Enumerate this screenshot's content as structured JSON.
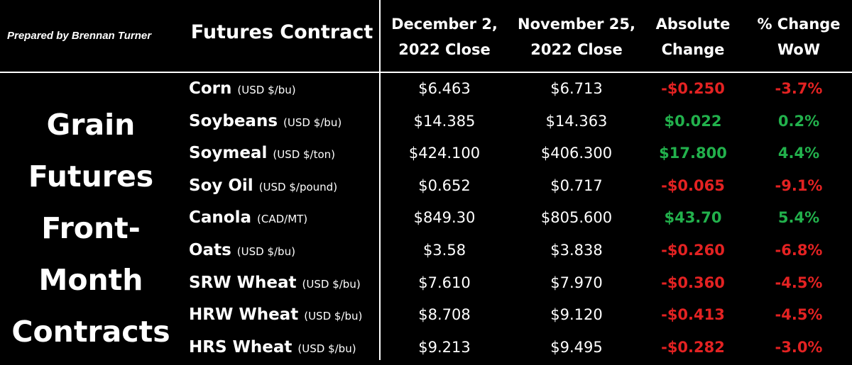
{
  "credit": "Prepared by Brennan Turner",
  "headers": {
    "contract": "Futures Contract",
    "dec_close": [
      "December 2,",
      "2022 Close"
    ],
    "nov_close": [
      "November 25,",
      "2022 Close"
    ],
    "abs_change": [
      "Absolute",
      "Change"
    ],
    "pct_change": [
      "% Change",
      "WoW"
    ]
  },
  "side_title": [
    "Grain",
    "Futures",
    "Front-",
    "Month",
    "Contracts"
  ],
  "colors": {
    "negative": "#e32222",
    "positive": "#22b14c"
  },
  "rows": [
    {
      "name": "Corn",
      "unit": "(USD $/bu)",
      "dec": "$6.463",
      "nov": "$6.713",
      "abs": "-$0.250",
      "pct": "-3.7%",
      "dir": "neg"
    },
    {
      "name": "Soybeans",
      "unit": "(USD $/bu)",
      "dec": "$14.385",
      "nov": "$14.363",
      "abs": "$0.022",
      "pct": "0.2%",
      "dir": "pos"
    },
    {
      "name": "Soymeal",
      "unit": "(USD $/ton)",
      "dec": "$424.100",
      "nov": "$406.300",
      "abs": "$17.800",
      "pct": "4.4%",
      "dir": "pos"
    },
    {
      "name": "Soy Oil",
      "unit": "(USD $/pound)",
      "dec": "$0.652",
      "nov": "$0.717",
      "abs": "-$0.065",
      "pct": "-9.1%",
      "dir": "neg"
    },
    {
      "name": "Canola",
      "unit": "(CAD/MT)",
      "dec": "$849.30",
      "nov": "$805.600",
      "abs": "$43.70",
      "pct": "5.4%",
      "dir": "pos"
    },
    {
      "name": "Oats",
      "unit": "(USD $/bu)",
      "dec": "$3.58",
      "nov": "$3.838",
      "abs": "-$0.260",
      "pct": "-6.8%",
      "dir": "neg"
    },
    {
      "name": "SRW Wheat",
      "unit": "(USD $/bu)",
      "dec": "$7.610",
      "nov": "$7.970",
      "abs": "-$0.360",
      "pct": "-4.5%",
      "dir": "neg"
    },
    {
      "name": "HRW Wheat",
      "unit": "(USD $/bu)",
      "dec": "$8.708",
      "nov": "$9.120",
      "abs": "-$0.413",
      "pct": "-4.5%",
      "dir": "neg"
    },
    {
      "name": "HRS Wheat",
      "unit": "(USD $/bu)",
      "dec": "$9.213",
      "nov": "$9.495",
      "abs": "-$0.282",
      "pct": "-3.0%",
      "dir": "neg"
    }
  ]
}
